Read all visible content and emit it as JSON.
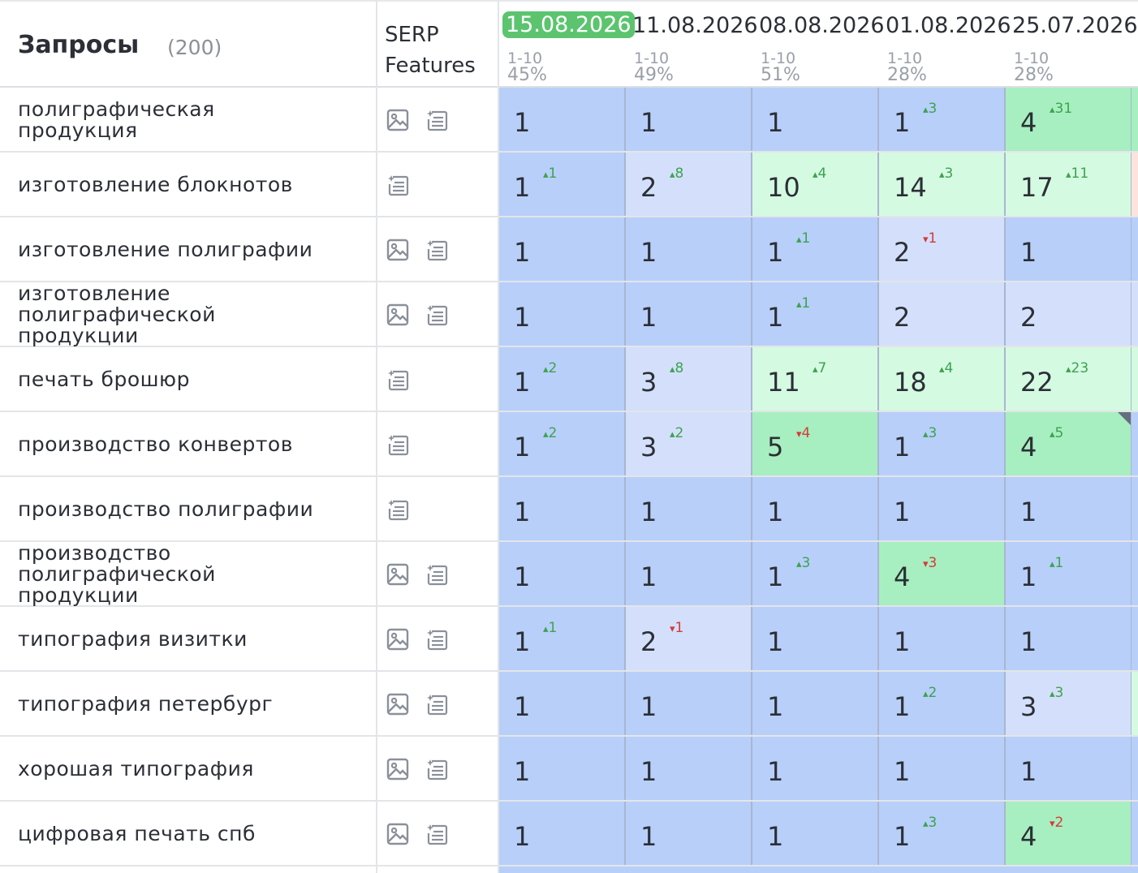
{
  "header": {
    "title": "Запросы",
    "count": "(200)",
    "serp_line1": "SERP",
    "serp_line2": "Features",
    "dates": [
      {
        "date": "15.08.2026",
        "range": "1-10",
        "pct": "45%",
        "active": true
      },
      {
        "date": "11.08.2026",
        "range": "1-10",
        "pct": "49%",
        "active": false
      },
      {
        "date": "08.08.2026",
        "range": "1-10",
        "pct": "51%",
        "active": false
      },
      {
        "date": "01.08.2026",
        "range": "1-10",
        "pct": "28%",
        "active": false
      },
      {
        "date": "25.07.2026",
        "range": "1-10",
        "pct": "28%",
        "active": false
      }
    ]
  },
  "colors": {
    "blue": "#b8cffa",
    "light_blue": "#d4e0fb",
    "green": "#a7efc0",
    "light_green": "#d5fae2",
    "active_date": "#5cc46f",
    "up": "#3ca34f",
    "down": "#d63a3a"
  },
  "rows": [
    {
      "query": [
        "полиграфическая",
        "продукция"
      ],
      "icons": [
        "image-icon",
        "snippet-icon"
      ],
      "cells": [
        {
          "v": "1",
          "d": "",
          "dir": "",
          "c": "blue"
        },
        {
          "v": "1",
          "d": "",
          "dir": "",
          "c": "blue"
        },
        {
          "v": "1",
          "d": "",
          "dir": "",
          "c": "blue"
        },
        {
          "v": "1",
          "d": "3",
          "dir": "up",
          "c": "blue"
        },
        {
          "v": "4",
          "d": "31",
          "dir": "up",
          "c": "green"
        }
      ],
      "edge": "green"
    },
    {
      "query": [
        "изготовление блокнотов"
      ],
      "icons": [
        "snippet-icon"
      ],
      "cells": [
        {
          "v": "1",
          "d": "1",
          "dir": "up",
          "c": "blue"
        },
        {
          "v": "2",
          "d": "8",
          "dir": "up",
          "c": "light_blue"
        },
        {
          "v": "10",
          "d": "4",
          "dir": "up",
          "c": "light_green"
        },
        {
          "v": "14",
          "d": "3",
          "dir": "up",
          "c": "light_green"
        },
        {
          "v": "17",
          "d": "11",
          "dir": "up",
          "c": "light_green"
        }
      ],
      "edge": "pink"
    },
    {
      "query": [
        "изготовление полиграфии"
      ],
      "icons": [
        "image-icon",
        "snippet-icon"
      ],
      "cells": [
        {
          "v": "1",
          "d": "",
          "dir": "",
          "c": "blue"
        },
        {
          "v": "1",
          "d": "",
          "dir": "",
          "c": "blue"
        },
        {
          "v": "1",
          "d": "1",
          "dir": "up",
          "c": "blue"
        },
        {
          "v": "2",
          "d": "1",
          "dir": "down",
          "c": "light_blue"
        },
        {
          "v": "1",
          "d": "",
          "dir": "",
          "c": "blue"
        }
      ],
      "edge": "blue"
    },
    {
      "query": [
        "изготовление",
        "полиграфической",
        "продукции"
      ],
      "icons": [
        "image-icon",
        "snippet-icon"
      ],
      "cells": [
        {
          "v": "1",
          "d": "",
          "dir": "",
          "c": "blue"
        },
        {
          "v": "1",
          "d": "",
          "dir": "",
          "c": "blue"
        },
        {
          "v": "1",
          "d": "1",
          "dir": "up",
          "c": "blue"
        },
        {
          "v": "2",
          "d": "",
          "dir": "",
          "c": "light_blue"
        },
        {
          "v": "2",
          "d": "",
          "dir": "",
          "c": "light_blue"
        }
      ],
      "edge": "light_blue"
    },
    {
      "query": [
        "печать брошюр"
      ],
      "icons": [
        "snippet-icon"
      ],
      "cells": [
        {
          "v": "1",
          "d": "2",
          "dir": "up",
          "c": "blue"
        },
        {
          "v": "3",
          "d": "8",
          "dir": "up",
          "c": "light_blue"
        },
        {
          "v": "11",
          "d": "7",
          "dir": "up",
          "c": "light_green"
        },
        {
          "v": "18",
          "d": "4",
          "dir": "up",
          "c": "light_green"
        },
        {
          "v": "22",
          "d": "23",
          "dir": "up",
          "c": "light_green"
        }
      ],
      "edge": "light_green"
    },
    {
      "query": [
        "производство конвертов"
      ],
      "icons": [
        "snippet-icon"
      ],
      "cells": [
        {
          "v": "1",
          "d": "2",
          "dir": "up",
          "c": "blue"
        },
        {
          "v": "3",
          "d": "2",
          "dir": "up",
          "c": "light_blue"
        },
        {
          "v": "5",
          "d": "4",
          "dir": "down",
          "c": "green"
        },
        {
          "v": "1",
          "d": "3",
          "dir": "up",
          "c": "blue"
        },
        {
          "v": "4",
          "d": "5",
          "dir": "up",
          "c": "green",
          "corner": true
        }
      ],
      "edge": "blue"
    },
    {
      "query": [
        "производство полиграфии"
      ],
      "icons": [
        "snippet-icon"
      ],
      "cells": [
        {
          "v": "1",
          "d": "",
          "dir": "",
          "c": "blue"
        },
        {
          "v": "1",
          "d": "",
          "dir": "",
          "c": "blue"
        },
        {
          "v": "1",
          "d": "",
          "dir": "",
          "c": "blue"
        },
        {
          "v": "1",
          "d": "",
          "dir": "",
          "c": "blue"
        },
        {
          "v": "1",
          "d": "",
          "dir": "",
          "c": "blue"
        }
      ],
      "edge": "blue"
    },
    {
      "query": [
        "производство",
        "полиграфической",
        "продукции"
      ],
      "icons": [
        "image-icon",
        "snippet-icon"
      ],
      "cells": [
        {
          "v": "1",
          "d": "",
          "dir": "",
          "c": "blue"
        },
        {
          "v": "1",
          "d": "",
          "dir": "",
          "c": "blue"
        },
        {
          "v": "1",
          "d": "3",
          "dir": "up",
          "c": "blue"
        },
        {
          "v": "4",
          "d": "3",
          "dir": "down",
          "c": "green"
        },
        {
          "v": "1",
          "d": "1",
          "dir": "up",
          "c": "blue"
        }
      ],
      "edge": "blue"
    },
    {
      "query": [
        "типография визитки"
      ],
      "icons": [
        "image-icon",
        "snippet-icon"
      ],
      "cells": [
        {
          "v": "1",
          "d": "1",
          "dir": "up",
          "c": "blue"
        },
        {
          "v": "2",
          "d": "1",
          "dir": "down",
          "c": "light_blue"
        },
        {
          "v": "1",
          "d": "",
          "dir": "",
          "c": "blue"
        },
        {
          "v": "1",
          "d": "",
          "dir": "",
          "c": "blue"
        },
        {
          "v": "1",
          "d": "",
          "dir": "",
          "c": "blue"
        }
      ],
      "edge": "blue"
    },
    {
      "query": [
        "типография петербург"
      ],
      "icons": [
        "image-icon",
        "snippet-icon"
      ],
      "cells": [
        {
          "v": "1",
          "d": "",
          "dir": "",
          "c": "blue"
        },
        {
          "v": "1",
          "d": "",
          "dir": "",
          "c": "blue"
        },
        {
          "v": "1",
          "d": "",
          "dir": "",
          "c": "blue"
        },
        {
          "v": "1",
          "d": "2",
          "dir": "up",
          "c": "blue"
        },
        {
          "v": "3",
          "d": "3",
          "dir": "up",
          "c": "light_blue"
        }
      ],
      "edge": "light_green"
    },
    {
      "query": [
        "хорошая типография"
      ],
      "icons": [
        "image-icon",
        "snippet-icon"
      ],
      "cells": [
        {
          "v": "1",
          "d": "",
          "dir": "",
          "c": "blue"
        },
        {
          "v": "1",
          "d": "",
          "dir": "",
          "c": "blue"
        },
        {
          "v": "1",
          "d": "",
          "dir": "",
          "c": "blue"
        },
        {
          "v": "1",
          "d": "",
          "dir": "",
          "c": "blue"
        },
        {
          "v": "1",
          "d": "",
          "dir": "",
          "c": "blue"
        }
      ],
      "edge": "blue"
    },
    {
      "query": [
        "цифровая печать спб"
      ],
      "icons": [
        "image-icon",
        "snippet-icon"
      ],
      "cells": [
        {
          "v": "1",
          "d": "",
          "dir": "",
          "c": "blue"
        },
        {
          "v": "1",
          "d": "",
          "dir": "",
          "c": "blue"
        },
        {
          "v": "1",
          "d": "",
          "dir": "",
          "c": "blue"
        },
        {
          "v": "1",
          "d": "3",
          "dir": "up",
          "c": "blue"
        },
        {
          "v": "4",
          "d": "2",
          "dir": "down",
          "c": "green"
        }
      ],
      "edge": "blue"
    }
  ]
}
